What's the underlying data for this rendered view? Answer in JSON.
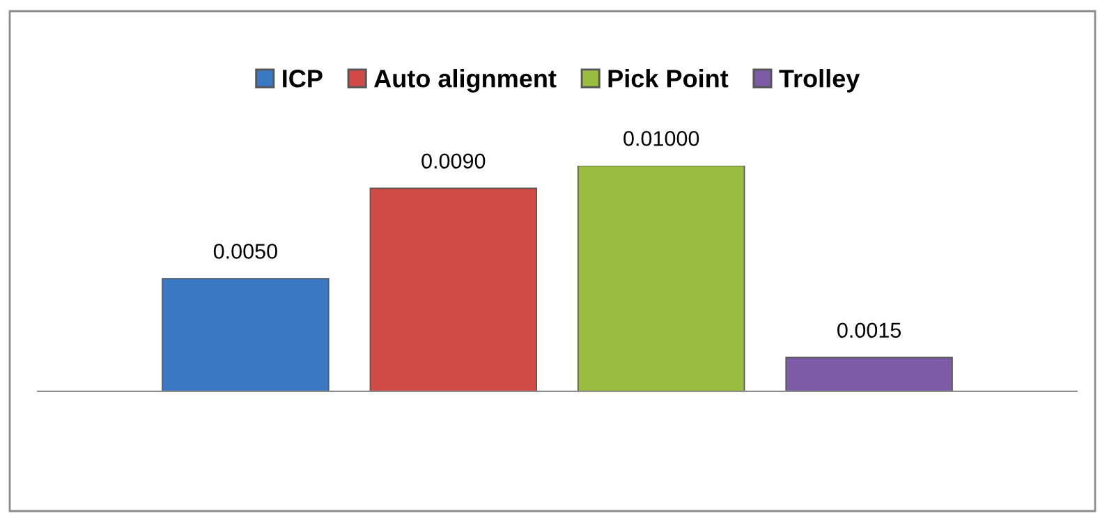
{
  "chart_data": {
    "type": "bar",
    "categories": [
      null
    ],
    "tick_labels": false,
    "legend": "top",
    "series": [
      {
        "name": "ICP",
        "color": "#3b78c3",
        "values": [
          0.005
        ],
        "value_labels": [
          "0.0050"
        ]
      },
      {
        "name": "Auto alignment",
        "color": "#d24a45",
        "values": [
          0.009
        ],
        "value_labels": [
          "0.0090"
        ]
      },
      {
        "name": "Pick Point",
        "color": "#9bbd3f",
        "values": [
          0.01
        ],
        "value_labels": [
          "0.01000"
        ]
      },
      {
        "name": "Trolley",
        "color": "#7d5ba6",
        "values": [
          0.0015
        ],
        "value_labels": [
          "0.0015"
        ]
      }
    ]
  }
}
